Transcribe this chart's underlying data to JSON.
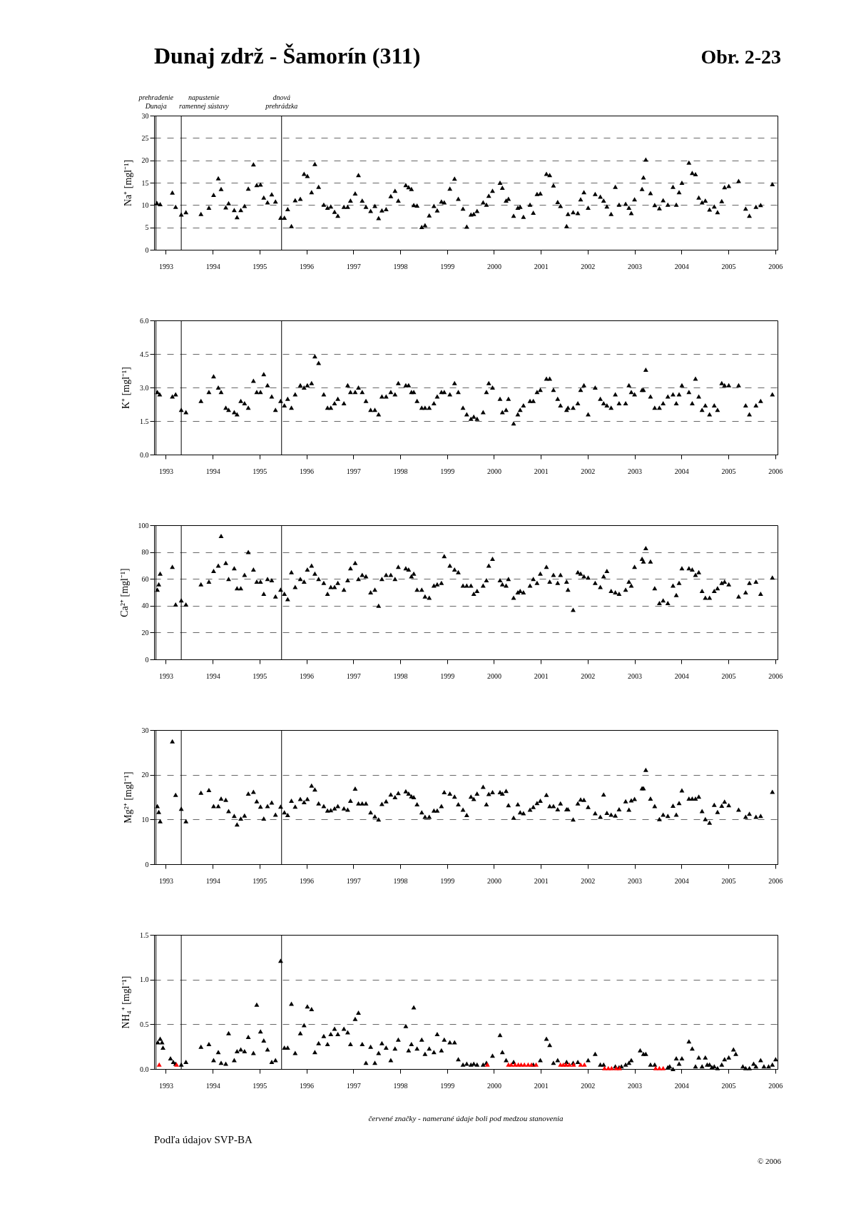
{
  "chart_data": [
    {
      "type": "scatter",
      "title": "Dunaj zdrž - Šamorín (311)",
      "subtitle": "Obr. 2-23",
      "ylabel": "Na⁺ [mgl⁻¹]",
      "marker": "triangle",
      "grid": "y",
      "xlim": [
        1992.75,
        2006.05
      ],
      "xticks": [
        1993,
        1994,
        1995,
        1996,
        1997,
        1998,
        1999,
        2000,
        2001,
        2002,
        2003,
        2004,
        2005,
        2006
      ],
      "ylim": [
        0,
        30
      ],
      "yticks": [
        0,
        5,
        10,
        15,
        20,
        25,
        30
      ],
      "ref_lines": [
        {
          "axis": "x",
          "value": 1992.79,
          "label": "prehradenie Dunaja"
        },
        {
          "axis": "x",
          "value": 1993.33,
          "label": "napustenie ramennej sústavy"
        },
        {
          "axis": "x",
          "value": 1995.47,
          "label": "dnová prehrádzka"
        }
      ],
      "series": [
        {
          "color": "#000000",
          "x": [
            1992.81,
            1992.88,
            1993.14,
            1993.21,
            1993.33,
            1993.43,
            1993.75,
            1993.92,
            1994.02,
            1994.12,
            1994.18,
            1994.28,
            1994.34,
            1994.46,
            1994.52,
            1994.6,
            1994.68,
            1994.76,
            1994.87,
            1994.94,
            1995.02,
            1995.09,
            1995.17,
            1995.26,
            1995.34,
            1995.45,
            1995.53,
            1995.6,
            1995.68,
            1995.76,
            1995.87,
            1995.95,
            1996.02,
            1996.11,
            1996.18,
            1996.26,
            1996.37,
            1996.45,
            1996.52,
            1996.6,
            1996.67,
            1996.8,
            1996.88,
            1996.94,
            1997.04,
            1997.11,
            1997.19,
            1997.27,
            1997.37,
            1997.46,
            1997.54,
            1997.61,
            1997.7,
            1997.8,
            1997.89,
            1997.96,
            1998.12,
            1998.18,
            1998.24,
            1998.29,
            1998.36,
            1998.46,
            1998.53,
            1998.62,
            1998.72,
            1998.79,
            1998.88,
            1998.94,
            1999.06,
            1999.16,
            1999.24,
            1999.34,
            1999.42,
            1999.51,
            1999.57,
            1999.64,
            1999.77,
            1999.84,
            1999.89,
            1999.97,
            2000.13,
            2000.18,
            2000.26,
            2000.31,
            2000.42,
            2000.51,
            2000.56,
            2000.63,
            2000.77,
            2000.84,
            2000.92,
            2000.99,
            2001.12,
            2001.19,
            2001.27,
            2001.36,
            2001.42,
            2001.55,
            2001.58,
            2001.69,
            2001.79,
            2001.85,
            2001.92,
            2002.01,
            2002.16,
            2002.27,
            2002.34,
            2002.41,
            2002.5,
            2002.59,
            2002.67,
            2002.81,
            2002.88,
            2002.93,
            2003.0,
            2003.16,
            2003.19,
            2003.24,
            2003.34,
            2003.43,
            2003.53,
            2003.61,
            2003.71,
            2003.82,
            2003.89,
            2003.95,
            2004.01,
            2004.16,
            2004.23,
            2004.3,
            2004.37,
            2004.44,
            2004.51,
            2004.6,
            2004.7,
            2004.77,
            2004.86,
            2004.92,
            2005.01,
            2005.22,
            2005.37,
            2005.45,
            2005.59,
            2005.69,
            2005.94
          ],
          "values": [
            10.5,
            10.2,
            12.8,
            9.6,
            7.9,
            8.4,
            8.0,
            9.4,
            12.3,
            16.0,
            13.6,
            9.5,
            10.4,
            8.9,
            7.3,
            8.9,
            9.8,
            13.7,
            19.1,
            14.5,
            14.6,
            11.7,
            10.6,
            12.4,
            10.8,
            7.2,
            7.2,
            9.1,
            5.3,
            11.1,
            11.4,
            17.0,
            16.5,
            12.9,
            19.2,
            14.1,
            10.1,
            9.4,
            9.7,
            8.5,
            7.6,
            9.6,
            9.6,
            11.0,
            12.6,
            16.7,
            11.0,
            9.6,
            8.7,
            9.8,
            7.1,
            8.8,
            9.1,
            12.0,
            13.2,
            11.0,
            14.5,
            14.0,
            13.6,
            10.0,
            9.9,
            5.1,
            5.5,
            7.7,
            9.8,
            8.8,
            10.8,
            10.6,
            13.7,
            15.9,
            11.4,
            9.2,
            5.2,
            7.9,
            8.0,
            8.7,
            10.6,
            10.1,
            12.1,
            13.2,
            15.0,
            13.9,
            11.0,
            11.4,
            7.6,
            9.4,
            9.6,
            7.4,
            10.1,
            8.3,
            12.5,
            12.6,
            17.0,
            16.7,
            14.4,
            10.7,
            9.8,
            5.3,
            8.0,
            8.4,
            8.2,
            11.3,
            12.9,
            9.4,
            12.5,
            11.9,
            11.0,
            9.7,
            8.0,
            14.1,
            10.1,
            10.3,
            9.4,
            8.2,
            11.3,
            13.6,
            16.2,
            20.2,
            12.7,
            10.0,
            9.3,
            11.1,
            10.1,
            14.1,
            10.1,
            12.9,
            15.0,
            19.5,
            17.2,
            16.9,
            11.7,
            10.6,
            11.0,
            9.0,
            9.7,
            8.4,
            10.9,
            14.0,
            14.3,
            15.4,
            9.2,
            7.6,
            9.6,
            10.0,
            14.7
          ]
        }
      ]
    },
    {
      "type": "scatter",
      "ylabel": "K⁺ [mgl⁻¹]",
      "marker": "triangle",
      "grid": "y",
      "xlim": [
        1992.75,
        2006.05
      ],
      "xticks": [
        1993,
        1994,
        1995,
        1996,
        1997,
        1998,
        1999,
        2000,
        2001,
        2002,
        2003,
        2004,
        2005,
        2006
      ],
      "ylim": [
        0,
        6
      ],
      "yticks": [
        {
          "value": 0,
          "label": "0.0"
        },
        1.5,
        {
          "value": 3,
          "label": "3.0"
        },
        4.5,
        {
          "value": 6,
          "label": "6.0"
        }
      ],
      "ref_lines": [
        {
          "axis": "x",
          "value": 1992.79
        },
        {
          "axis": "x",
          "value": 1993.33
        },
        {
          "axis": "x",
          "value": 1995.47
        }
      ],
      "series": [
        {
          "color": "#000000",
          "x": [
            1992.82,
            1992.87,
            1993.14,
            1993.21,
            1993.33,
            1993.43,
            1993.75,
            1993.92,
            1994.02,
            1994.12,
            1994.18,
            1994.28,
            1994.34,
            1994.46,
            1994.52,
            1994.6,
            1994.68,
            1994.76,
            1994.87,
            1994.94,
            1995.02,
            1995.09,
            1995.17,
            1995.26,
            1995.34,
            1995.45,
            1995.53,
            1995.6,
            1995.68,
            1995.76,
            1995.87,
            1995.95,
            1996.02,
            1996.11,
            1996.18,
            1996.26,
            1996.37,
            1996.45,
            1996.52,
            1996.6,
            1996.67,
            1996.8,
            1996.88,
            1996.94,
            1997.04,
            1997.11,
            1997.19,
            1997.27,
            1997.37,
            1997.46,
            1997.54,
            1997.61,
            1997.7,
            1997.8,
            1997.89,
            1997.96,
            1998.12,
            1998.18,
            1998.24,
            1998.29,
            1998.36,
            1998.46,
            1998.53,
            1998.62,
            1998.72,
            1998.79,
            1998.88,
            1998.94,
            1999.06,
            1999.16,
            1999.24,
            1999.34,
            1999.42,
            1999.51,
            1999.57,
            1999.64,
            1999.77,
            1999.84,
            1999.89,
            1999.97,
            2000.13,
            2000.18,
            2000.26,
            2000.31,
            2000.42,
            2000.51,
            2000.56,
            2000.63,
            2000.77,
            2000.84,
            2000.92,
            2000.99,
            2001.12,
            2001.19,
            2001.27,
            2001.36,
            2001.42,
            2001.55,
            2001.58,
            2001.69,
            2001.79,
            2001.85,
            2001.92,
            2002.01,
            2002.16,
            2002.27,
            2002.34,
            2002.41,
            2002.5,
            2002.59,
            2002.67,
            2002.81,
            2002.88,
            2002.93,
            2003.0,
            2003.16,
            2003.19,
            2003.24,
            2003.34,
            2003.43,
            2003.53,
            2003.61,
            2003.71,
            2003.82,
            2003.89,
            2003.95,
            2004.01,
            2004.16,
            2004.23,
            2004.3,
            2004.37,
            2004.44,
            2004.51,
            2004.6,
            2004.7,
            2004.77,
            2004.86,
            2004.92,
            2005.01,
            2005.22,
            2005.37,
            2005.45,
            2005.59,
            2005.69,
            2005.94
          ],
          "values": [
            2.8,
            2.7,
            2.6,
            2.7,
            2.0,
            1.9,
            2.4,
            2.8,
            3.5,
            3.0,
            2.8,
            2.1,
            2.0,
            1.9,
            1.8,
            2.4,
            2.3,
            2.1,
            3.3,
            2.8,
            2.8,
            3.6,
            3.1,
            2.6,
            2.0,
            2.4,
            2.2,
            2.5,
            2.1,
            2.7,
            3.1,
            3.0,
            3.1,
            3.2,
            4.4,
            4.1,
            2.7,
            2.1,
            2.1,
            2.3,
            2.5,
            2.3,
            3.1,
            2.8,
            2.8,
            3.0,
            2.8,
            2.4,
            2.0,
            2.0,
            1.8,
            2.6,
            2.6,
            2.8,
            2.7,
            3.2,
            3.1,
            3.1,
            2.8,
            2.8,
            2.4,
            2.1,
            2.1,
            2.1,
            2.3,
            2.6,
            2.8,
            2.8,
            2.7,
            3.2,
            2.8,
            2.1,
            1.8,
            1.6,
            1.7,
            1.6,
            1.9,
            2.8,
            3.2,
            3.0,
            2.5,
            1.9,
            2.0,
            2.5,
            1.4,
            1.8,
            2.0,
            2.2,
            2.4,
            2.4,
            2.8,
            2.9,
            3.4,
            3.4,
            2.9,
            2.5,
            2.2,
            2.0,
            2.1,
            2.1,
            2.3,
            2.9,
            3.1,
            1.8,
            3.0,
            2.5,
            2.3,
            2.2,
            2.1,
            2.7,
            2.3,
            2.3,
            3.1,
            2.8,
            2.7,
            2.9,
            2.9,
            3.8,
            2.6,
            2.1,
            2.1,
            2.3,
            2.6,
            2.7,
            2.3,
            2.7,
            3.1,
            2.8,
            2.3,
            3.4,
            2.6,
            2.0,
            2.2,
            1.8,
            2.2,
            2.0,
            3.2,
            3.1,
            3.1,
            3.1,
            2.2,
            1.8,
            2.2,
            2.4,
            2.7
          ]
        }
      ]
    },
    {
      "type": "scatter",
      "ylabel": "Ca²⁺ [mgl⁻¹]",
      "marker": "triangle",
      "grid": "y",
      "xlim": [
        1992.75,
        2006.05
      ],
      "xticks": [
        1993,
        1994,
        1995,
        1996,
        1997,
        1998,
        1999,
        2000,
        2001,
        2002,
        2003,
        2004,
        2005,
        2006
      ],
      "ylim": [
        0,
        100
      ],
      "yticks": [
        0,
        20,
        40,
        60,
        80,
        100
      ],
      "ref_lines": [
        {
          "axis": "x",
          "value": 1992.79
        },
        {
          "axis": "x",
          "value": 1993.33
        },
        {
          "axis": "x",
          "value": 1995.47
        }
      ],
      "series": [
        {
          "color": "#000000",
          "x": [
            1992.82,
            1992.85,
            1992.88,
            1993.14,
            1993.21,
            1993.33,
            1993.43,
            1993.75,
            1993.92,
            1994.02,
            1994.12,
            1994.18,
            1994.28,
            1994.34,
            1994.46,
            1994.52,
            1994.6,
            1994.68,
            1994.76,
            1994.87,
            1994.94,
            1995.02,
            1995.09,
            1995.17,
            1995.26,
            1995.34,
            1995.45,
            1995.53,
            1995.6,
            1995.68,
            1995.76,
            1995.87,
            1995.95,
            1996.02,
            1996.11,
            1996.18,
            1996.26,
            1996.37,
            1996.45,
            1996.52,
            1996.6,
            1996.67,
            1996.8,
            1996.88,
            1996.94,
            1997.04,
            1997.11,
            1997.19,
            1997.27,
            1997.37,
            1997.46,
            1997.54,
            1997.61,
            1997.7,
            1997.8,
            1997.89,
            1997.96,
            1998.12,
            1998.18,
            1998.24,
            1998.29,
            1998.36,
            1998.46,
            1998.53,
            1998.62,
            1998.72,
            1998.79,
            1998.88,
            1998.94,
            1999.06,
            1999.16,
            1999.24,
            1999.34,
            1999.42,
            1999.51,
            1999.57,
            1999.64,
            1999.77,
            1999.84,
            1999.89,
            1999.97,
            2000.13,
            2000.18,
            2000.26,
            2000.31,
            2000.42,
            2000.51,
            2000.56,
            2000.63,
            2000.77,
            2000.84,
            2000.92,
            2000.99,
            2001.12,
            2001.19,
            2001.27,
            2001.36,
            2001.42,
            2001.55,
            2001.58,
            2001.69,
            2001.79,
            2001.85,
            2001.92,
            2002.01,
            2002.16,
            2002.27,
            2002.34,
            2002.41,
            2002.5,
            2002.59,
            2002.67,
            2002.81,
            2002.88,
            2002.93,
            2003.0,
            2003.16,
            2003.19,
            2003.24,
            2003.34,
            2003.43,
            2003.53,
            2003.61,
            2003.71,
            2003.82,
            2003.89,
            2003.95,
            2004.01,
            2004.16,
            2004.23,
            2004.3,
            2004.37,
            2004.44,
            2004.51,
            2004.6,
            2004.7,
            2004.77,
            2004.86,
            2004.92,
            2005.01,
            2005.22,
            2005.37,
            2005.45,
            2005.59,
            2005.69,
            2005.94
          ],
          "values": [
            52,
            56,
            64,
            69,
            41,
            44,
            41,
            56,
            58,
            66,
            70,
            92,
            72,
            60,
            68,
            53,
            53,
            63,
            80,
            67,
            58,
            58,
            49,
            60,
            59,
            47,
            52,
            49,
            45,
            65,
            54,
            60,
            58,
            67,
            70,
            64,
            60,
            57,
            49,
            54,
            54,
            57,
            52,
            59,
            68,
            72,
            60,
            63,
            62,
            50,
            52,
            40,
            60,
            63,
            63,
            60,
            69,
            68,
            67,
            62,
            64,
            52,
            52,
            47,
            46,
            55,
            56,
            57,
            77,
            70,
            67,
            65,
            55,
            55,
            55,
            49,
            51,
            55,
            59,
            70,
            75,
            59,
            56,
            55,
            60,
            46,
            50,
            51,
            50,
            55,
            60,
            57,
            64,
            69,
            58,
            63,
            57,
            63,
            58,
            52,
            37,
            65,
            64,
            62,
            61,
            57,
            54,
            62,
            66,
            51,
            50,
            49,
            52,
            58,
            55,
            69,
            75,
            73,
            83,
            73,
            53,
            42,
            44,
            42,
            55,
            48,
            57,
            68,
            68,
            67,
            63,
            65,
            51,
            46,
            46,
            51,
            53,
            57,
            58,
            56,
            47,
            50,
            57,
            58,
            49,
            61
          ]
        }
      ]
    },
    {
      "type": "scatter",
      "ylabel": "Mg²⁺ [mgl⁻¹]",
      "marker": "triangle",
      "grid": "y",
      "xlim": [
        1992.75,
        2006.05
      ],
      "xticks": [
        1993,
        1994,
        1995,
        1996,
        1997,
        1998,
        1999,
        2000,
        2001,
        2002,
        2003,
        2004,
        2005,
        2006
      ],
      "ylim": [
        0,
        30
      ],
      "yticks": [
        0,
        10,
        20,
        30
      ],
      "ref_lines": [
        {
          "axis": "x",
          "value": 1992.79
        },
        {
          "axis": "x",
          "value": 1993.33
        },
        {
          "axis": "x",
          "value": 1995.47
        }
      ],
      "series": [
        {
          "color": "#000000",
          "x": [
            1992.82,
            1992.85,
            1992.88,
            1993.14,
            1993.21,
            1993.33,
            1993.43,
            1993.75,
            1993.92,
            1994.02,
            1994.12,
            1994.18,
            1994.28,
            1994.34,
            1994.46,
            1994.52,
            1994.6,
            1994.68,
            1994.76,
            1994.87,
            1994.94,
            1995.02,
            1995.09,
            1995.17,
            1995.26,
            1995.34,
            1995.45,
            1995.53,
            1995.6,
            1995.68,
            1995.76,
            1995.87,
            1995.95,
            1996.02,
            1996.11,
            1996.18,
            1996.26,
            1996.37,
            1996.45,
            1996.52,
            1996.6,
            1996.67,
            1996.8,
            1996.88,
            1996.94,
            1997.04,
            1997.11,
            1997.19,
            1997.27,
            1997.37,
            1997.46,
            1997.54,
            1997.61,
            1997.7,
            1997.8,
            1997.89,
            1997.96,
            1998.12,
            1998.18,
            1998.24,
            1998.29,
            1998.36,
            1998.46,
            1998.53,
            1998.62,
            1998.72,
            1998.79,
            1998.88,
            1998.94,
            1999.06,
            1999.16,
            1999.24,
            1999.34,
            1999.42,
            1999.51,
            1999.57,
            1999.64,
            1999.77,
            1999.84,
            1999.89,
            1999.97,
            2000.13,
            2000.18,
            2000.26,
            2000.31,
            2000.42,
            2000.51,
            2000.56,
            2000.63,
            2000.77,
            2000.84,
            2000.92,
            2000.99,
            2001.12,
            2001.19,
            2001.27,
            2001.36,
            2001.42,
            2001.55,
            2001.58,
            2001.69,
            2001.79,
            2001.85,
            2001.92,
            2002.01,
            2002.16,
            2002.27,
            2002.34,
            2002.41,
            2002.5,
            2002.59,
            2002.67,
            2002.81,
            2002.88,
            2002.93,
            2003.0,
            2003.16,
            2003.19,
            2003.24,
            2003.34,
            2003.43,
            2003.53,
            2003.61,
            2003.71,
            2003.82,
            2003.89,
            2003.95,
            2004.01,
            2004.16,
            2004.23,
            2004.3,
            2004.37,
            2004.44,
            2004.51,
            2004.6,
            2004.7,
            2004.77,
            2004.86,
            2004.92,
            2005.01,
            2005.22,
            2005.37,
            2005.45,
            2005.59,
            2005.69,
            2005.94
          ],
          "values": [
            13.0,
            11.7,
            9.6,
            27.5,
            15.5,
            12.4,
            9.6,
            16.0,
            16.6,
            13.0,
            13.0,
            14.7,
            14.4,
            11.9,
            10.8,
            8.9,
            10.2,
            10.9,
            15.8,
            16.2,
            14.1,
            12.9,
            10.2,
            13.0,
            13.8,
            11.1,
            12.9,
            11.6,
            11.0,
            14.2,
            12.9,
            14.6,
            13.9,
            14.6,
            17.6,
            16.7,
            13.6,
            13.0,
            12.0,
            12.1,
            12.5,
            13.0,
            12.5,
            12.2,
            14.2,
            16.9,
            13.6,
            13.6,
            13.6,
            11.6,
            10.7,
            10.0,
            13.5,
            14.1,
            15.6,
            15.0,
            15.9,
            16.3,
            15.8,
            15.2,
            15.0,
            13.4,
            11.6,
            10.6,
            10.6,
            12.0,
            12.0,
            13.0,
            16.1,
            15.8,
            15.1,
            13.4,
            12.2,
            11.0,
            15.1,
            14.6,
            15.8,
            17.3,
            13.4,
            15.7,
            16.1,
            16.1,
            15.8,
            16.4,
            13.2,
            10.4,
            13.4,
            11.6,
            11.4,
            12.2,
            12.8,
            13.7,
            14.2,
            15.5,
            13.0,
            13.0,
            12.3,
            13.6,
            12.3,
            12.3,
            10.0,
            13.6,
            14.5,
            14.4,
            12.8,
            11.4,
            10.6,
            15.6,
            11.5,
            11.1,
            10.9,
            12.3,
            14.1,
            12.2,
            14.3,
            14.6,
            17.0,
            17.0,
            21.1,
            14.7,
            13.0,
            10.1,
            11.1,
            10.8,
            13.1,
            11.1,
            13.7,
            16.5,
            14.7,
            14.7,
            14.7,
            15.1,
            11.9,
            10.1,
            9.3,
            13.3,
            11.7,
            13.1,
            14.0,
            13.2,
            12.2,
            10.6,
            11.3,
            10.6,
            10.8,
            16.2
          ]
        }
      ]
    },
    {
      "type": "scatter",
      "ylabel": "NH₄⁺ [mgl⁻¹]",
      "marker": "triangle",
      "grid": "y",
      "xlim": [
        1992.75,
        2006.05
      ],
      "xticks": [
        1993,
        1994,
        1995,
        1996,
        1997,
        1998,
        1999,
        2000,
        2001,
        2002,
        2003,
        2004,
        2005,
        2006
      ],
      "ylim": [
        0,
        1.5
      ],
      "yticks": [
        {
          "value": 0,
          "label": "0.0"
        },
        0.5,
        {
          "value": 1,
          "label": "1.0"
        },
        1.5
      ],
      "ref_lines": [
        {
          "axis": "x",
          "value": 1992.79
        },
        {
          "axis": "x",
          "value": 1993.33
        },
        {
          "axis": "x",
          "value": 1995.47
        }
      ],
      "annotations": [
        "červené značky - namerané údaje boli pod medzou stanovenia",
        "Podľa údajov SVP-BA",
        "© 2006"
      ],
      "series": [
        {
          "color": "#000000",
          "x": [
            1992.83,
            1992.88,
            1992.92,
            1992.94,
            1993.1,
            1993.16,
            1993.21,
            1993.33,
            1993.43,
            1993.75,
            1993.92,
            1994.02,
            1994.12,
            1994.18,
            1994.28,
            1994.34,
            1994.46,
            1994.52,
            1994.6,
            1994.68,
            1994.76,
            1994.87,
            1994.94,
            1995.02,
            1995.09,
            1995.17,
            1995.26,
            1995.34,
            1995.45,
            1995.53,
            1995.6,
            1995.68,
            1995.76,
            1995.87,
            1995.95,
            1996.02,
            1996.11,
            1996.18,
            1996.26,
            1996.37,
            1996.45,
            1996.52,
            1996.6,
            1996.67,
            1996.8,
            1996.88,
            1996.94,
            1997.04,
            1997.11,
            1997.19,
            1997.27,
            1997.37,
            1997.46,
            1997.54,
            1997.61,
            1997.7,
            1997.8,
            1997.89,
            1997.96,
            1998.12,
            1998.18,
            1998.24,
            1998.29,
            1998.36,
            1998.46,
            1998.53,
            1998.62,
            1998.72,
            1998.79,
            1998.88,
            1998.94,
            1999.06,
            1999.16,
            1999.24,
            1999.34,
            1999.42,
            1999.51,
            1999.57,
            1999.64,
            1999.77,
            1999.84,
            1999.97,
            2000.13,
            2000.18,
            2000.26,
            2000.42,
            2000.84,
            2000.99,
            2001.12,
            2001.19,
            2001.27,
            2001.36,
            2001.55,
            2001.69,
            2001.79,
            2002.01,
            2002.16,
            2002.27,
            2002.34,
            2002.59,
            2002.67,
            2002.72,
            2002.81,
            2002.88,
            2002.93,
            2003.12,
            2003.19,
            2003.24,
            2003.34,
            2003.43,
            2003.71,
            2003.75,
            2003.82,
            2003.89,
            2003.95,
            2004.01,
            2004.16,
            2004.23,
            2004.3,
            2004.37,
            2004.44,
            2004.51,
            2004.55,
            2004.6,
            2004.65,
            2004.7,
            2004.77,
            2004.86,
            2004.92,
            2005.01,
            2005.11,
            2005.16,
            2005.31,
            2005.37,
            2005.45,
            2005.54,
            2005.59,
            2005.69,
            2005.76,
            2005.86,
            2005.94,
            2006.01
          ],
          "values": [
            0.3,
            0.34,
            0.3,
            0.24,
            0.12,
            0.08,
            0.06,
            0.05,
            0.08,
            0.25,
            0.28,
            0.1,
            0.19,
            0.07,
            0.06,
            0.4,
            0.1,
            0.2,
            0.22,
            0.2,
            0.36,
            0.18,
            0.72,
            0.42,
            0.32,
            0.22,
            0.08,
            0.1,
            1.21,
            0.24,
            0.24,
            0.73,
            0.18,
            0.4,
            0.49,
            0.7,
            0.67,
            0.19,
            0.29,
            0.37,
            0.28,
            0.39,
            0.45,
            0.39,
            0.45,
            0.41,
            0.28,
            0.56,
            0.63,
            0.28,
            0.07,
            0.25,
            0.07,
            0.18,
            0.29,
            0.24,
            0.1,
            0.23,
            0.33,
            0.48,
            0.21,
            0.28,
            0.69,
            0.23,
            0.33,
            0.17,
            0.23,
            0.19,
            0.39,
            0.21,
            0.33,
            0.3,
            0.3,
            0.11,
            0.05,
            0.06,
            0.05,
            0.06,
            0.05,
            0.05,
            0.07,
            0.15,
            0.38,
            0.19,
            0.1,
            0.08,
            0.05,
            0.1,
            0.34,
            0.27,
            0.07,
            0.1,
            0.08,
            0.07,
            0.08,
            0.1,
            0.17,
            0.05,
            0.05,
            0.03,
            0.02,
            0.03,
            0.05,
            0.07,
            0.1,
            0.21,
            0.17,
            0.17,
            0.05,
            0.05,
            0.02,
            0.03,
            0.0,
            0.12,
            0.06,
            0.12,
            0.31,
            0.23,
            0.03,
            0.13,
            0.03,
            0.13,
            0.05,
            0.05,
            0.02,
            0.03,
            0.01,
            0.05,
            0.11,
            0.13,
            0.22,
            0.17,
            0.03,
            0.01,
            0.01,
            0.06,
            0.03,
            0.1,
            0.03,
            0.03,
            0.05,
            0.11
          ]
        },
        {
          "color": "#ff0000",
          "x": [
            1992.86,
            1993.23,
            1999.86,
            2000.31,
            2000.37,
            2000.45,
            2000.52,
            2000.58,
            2000.65,
            2000.73,
            2000.8,
            2000.9,
            2001.42,
            2001.48,
            2001.54,
            2001.61,
            2001.7,
            2001.85,
            2001.93,
            2002.36,
            2002.44,
            2002.51,
            2002.61,
            2002.68,
            2003.45,
            2003.53,
            2003.61
          ],
          "values": [
            0.05,
            0.05,
            0.05,
            0.05,
            0.05,
            0.05,
            0.05,
            0.05,
            0.05,
            0.05,
            0.05,
            0.05,
            0.05,
            0.05,
            0.05,
            0.05,
            0.05,
            0.05,
            0.05,
            0.01,
            0.01,
            0.01,
            0.01,
            0.01,
            0.01,
            0.01,
            0.01
          ]
        }
      ]
    }
  ]
}
